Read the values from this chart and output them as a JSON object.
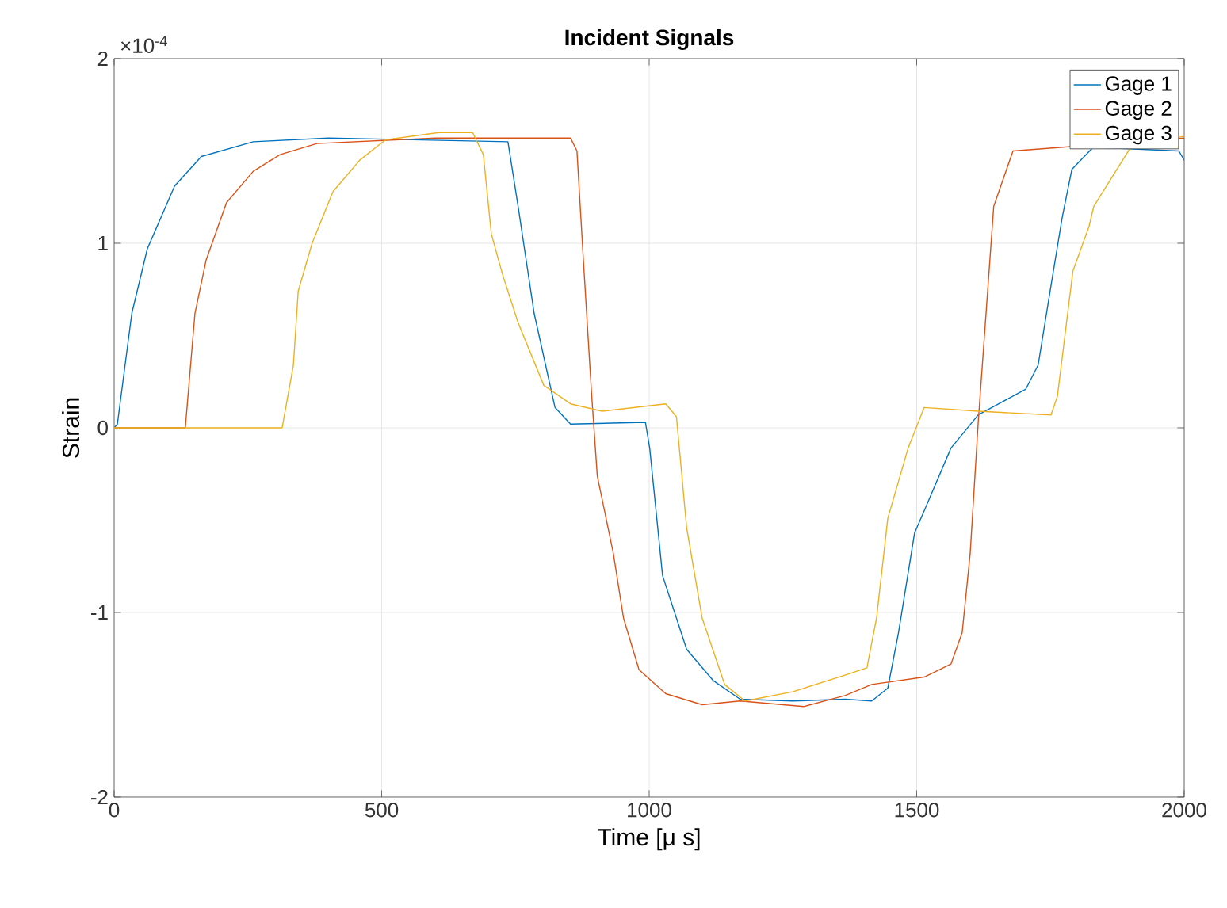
{
  "chart_data": {
    "type": "line",
    "title": "Incident Signals",
    "xlabel": "Time [μ s]",
    "ylabel": "Strain",
    "annotations": [
      "×10$^{-4}$"
    ],
    "xlim": [
      0,
      2000
    ],
    "ylim": [
      -2,
      2
    ],
    "xticks": [
      0,
      500,
      1000,
      1500,
      2000
    ],
    "yticks": [
      -2,
      -1,
      0,
      1,
      2
    ],
    "grid": true,
    "legend": "top right",
    "series": [
      {
        "name": "Gage 1",
        "color": "#0072bd",
        "x": [
          0,
          6,
          33,
          62,
          113,
          163,
          260,
          400,
          736,
          755,
          785,
          824,
          853,
          993,
          1001,
          1025,
          1070,
          1120,
          1170,
          1268,
          1366,
          1416,
          1446,
          1466,
          1496,
          1514,
          1564,
          1615,
          1704,
          1727,
          1751,
          1772,
          1790,
          1830,
          1990,
          2000
        ],
        "values": [
          0,
          0.02,
          0.62,
          0.97,
          1.31,
          1.47,
          1.55,
          1.57,
          1.55,
          1.2,
          0.62,
          0.11,
          0.02,
          0.03,
          -0.11,
          -0.8,
          -1.2,
          -1.37,
          -1.47,
          -1.48,
          -1.47,
          -1.48,
          -1.41,
          -1.11,
          -0.57,
          -0.45,
          -0.11,
          0.07,
          0.21,
          0.34,
          0.77,
          1.14,
          1.4,
          1.52,
          1.5,
          1.45
        ]
      },
      {
        "name": "Gage 2",
        "color": "#d95319",
        "x": [
          0,
          133,
          151,
          172,
          210,
          260,
          310,
          379,
          600,
          853,
          865,
          877,
          892,
          903,
          933,
          952,
          981,
          1031,
          1099,
          1170,
          1289,
          1366,
          1416,
          1514,
          1564,
          1585,
          1600,
          1615,
          1644,
          1680,
          2000
        ],
        "values": [
          0,
          0,
          0.62,
          0.91,
          1.22,
          1.39,
          1.48,
          1.54,
          1.57,
          1.57,
          1.5,
          0.91,
          0.2,
          -0.26,
          -0.68,
          -1.03,
          -1.31,
          -1.44,
          -1.5,
          -1.48,
          -1.51,
          -1.45,
          -1.39,
          -1.35,
          -1.28,
          -1.11,
          -0.68,
          0.03,
          1.2,
          1.5,
          1.57
        ]
      },
      {
        "name": "Gage 3",
        "color": "#edb120",
        "x": [
          0,
          314,
          335,
          344,
          370,
          409,
          459,
          507,
          607,
          670,
          690,
          705,
          726,
          755,
          803,
          853,
          912,
          1031,
          1051,
          1070,
          1099,
          1141,
          1179,
          1268,
          1366,
          1407,
          1425,
          1446,
          1484,
          1514,
          1615,
          1751,
          1763,
          1792,
          1822,
          1831,
          1900,
          2000
        ],
        "values": [
          0,
          0,
          0.34,
          0.74,
          1.0,
          1.28,
          1.45,
          1.56,
          1.6,
          1.6,
          1.48,
          1.05,
          0.83,
          0.57,
          0.23,
          0.13,
          0.09,
          0.13,
          0.06,
          -0.54,
          -1.03,
          -1.39,
          -1.48,
          -1.43,
          -1.34,
          -1.3,
          -1.03,
          -0.49,
          -0.11,
          0.11,
          0.09,
          0.07,
          0.17,
          0.85,
          1.09,
          1.2,
          1.52,
          1.58
        ]
      }
    ]
  }
}
